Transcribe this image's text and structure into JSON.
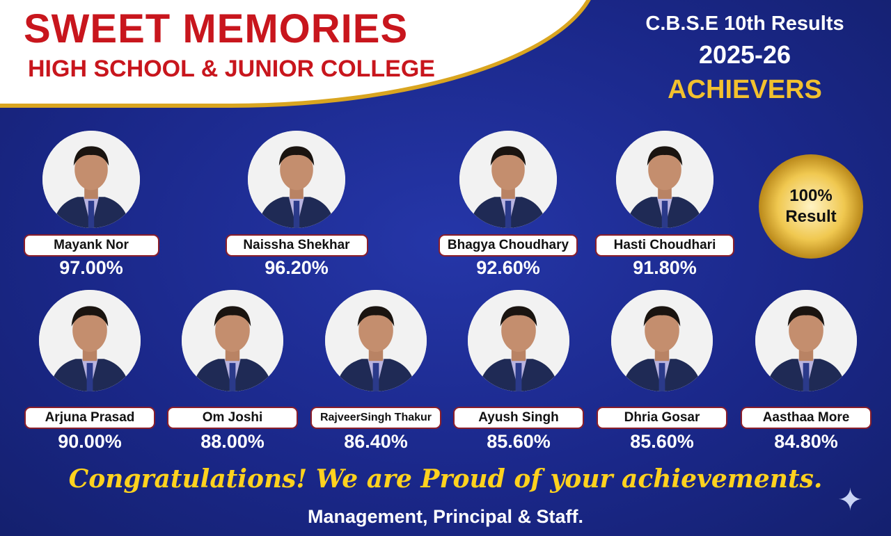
{
  "school": {
    "name": "SWEET MEMORIES",
    "subtitle": "HIGH SCHOOL & JUNIOR COLLEGE"
  },
  "result_heading": {
    "exam": "C.B.S.E 10th Results",
    "year": "2025-26",
    "label": "ACHIEVERS"
  },
  "badge": {
    "line1": "100%",
    "line2": "Result"
  },
  "students_row1": [
    {
      "name": "Mayank Nor",
      "score": "97.00%"
    },
    {
      "name": "Naissha Shekhar",
      "score": "96.20%"
    },
    {
      "name": "Bhagya Choudhary",
      "score": "92.60%"
    },
    {
      "name": "Hasti Choudhari",
      "score": "91.80%"
    }
  ],
  "students_row2": [
    {
      "name": "Arjuna Prasad",
      "score": "90.00%"
    },
    {
      "name": "Om Joshi",
      "score": "88.00%"
    },
    {
      "name": "RajveerSingh Thakur",
      "score": "86.40%"
    },
    {
      "name": "Ayush Singh",
      "score": "85.60%"
    },
    {
      "name": "Dhria Gosar",
      "score": "85.60%"
    },
    {
      "name": "Aasthaa More",
      "score": "84.80%"
    }
  ],
  "congratulations": "Congratulations! We are Proud of your achievements.",
  "footer": "Management, Principal & Staff.",
  "colors": {
    "background": "#1b2a8e",
    "title_red": "#c8161d",
    "gold": "#d9a520",
    "congrats_yellow": "#ffd21e"
  }
}
